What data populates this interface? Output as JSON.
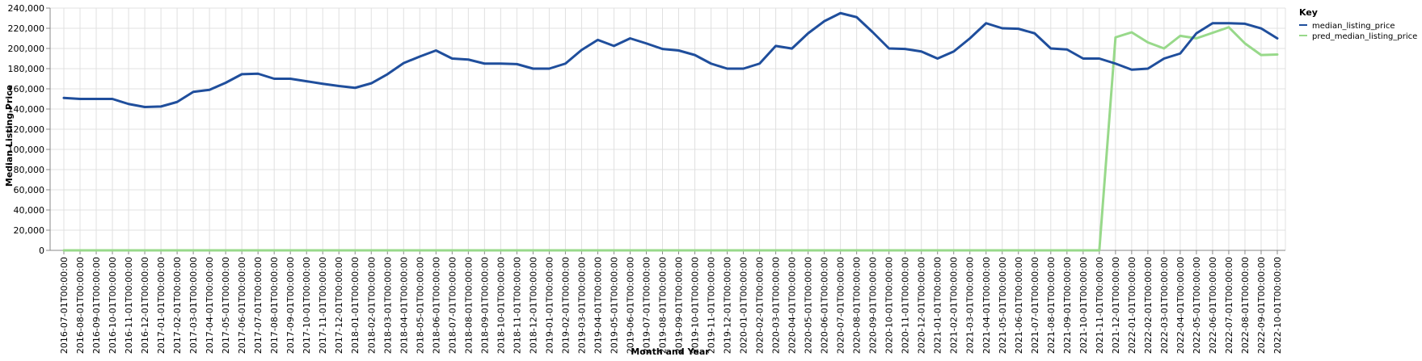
{
  "chart_data": {
    "type": "line",
    "title": "",
    "xlabel": "Month and Year",
    "ylabel": "Median Listing Price",
    "ylim": [
      0,
      240000
    ],
    "y_ticks": [
      0,
      20000,
      40000,
      60000,
      80000,
      100000,
      120000,
      140000,
      160000,
      180000,
      200000,
      220000,
      240000
    ],
    "y_tick_labels": [
      "0",
      "20,000",
      "40,000",
      "60,000",
      "80,000",
      "100,000",
      "120,000",
      "140,000",
      "160,000",
      "180,000",
      "200,000",
      "220,000",
      "240,000"
    ],
    "grid": true,
    "legend": {
      "title": "Key",
      "placement": "top-right"
    },
    "categories": [
      "2016-07-01T00:00:00",
      "2016-08-01T00:00:00",
      "2016-09-01T00:00:00",
      "2016-10-01T00:00:00",
      "2016-11-01T00:00:00",
      "2016-12-01T00:00:00",
      "2017-01-01T00:00:00",
      "2017-02-01T00:00:00",
      "2017-03-01T00:00:00",
      "2017-04-01T00:00:00",
      "2017-05-01T00:00:00",
      "2017-06-01T00:00:00",
      "2017-07-01T00:00:00",
      "2017-08-01T00:00:00",
      "2017-09-01T00:00:00",
      "2017-10-01T00:00:00",
      "2017-11-01T00:00:00",
      "2017-12-01T00:00:00",
      "2018-01-01T00:00:00",
      "2018-02-01T00:00:00",
      "2018-03-01T00:00:00",
      "2018-04-01T00:00:00",
      "2018-05-01T00:00:00",
      "2018-06-01T00:00:00",
      "2018-07-01T00:00:00",
      "2018-08-01T00:00:00",
      "2018-09-01T00:00:00",
      "2018-10-01T00:00:00",
      "2018-11-01T00:00:00",
      "2018-12-01T00:00:00",
      "2019-01-01T00:00:00",
      "2019-02-01T00:00:00",
      "2019-03-01T00:00:00",
      "2019-04-01T00:00:00",
      "2019-05-01T00:00:00",
      "2019-06-01T00:00:00",
      "2019-07-01T00:00:00",
      "2019-08-01T00:00:00",
      "2019-09-01T00:00:00",
      "2019-10-01T00:00:00",
      "2019-11-01T00:00:00",
      "2019-12-01T00:00:00",
      "2020-01-01T00:00:00",
      "2020-02-01T00:00:00",
      "2020-03-01T00:00:00",
      "2020-04-01T00:00:00",
      "2020-05-01T00:00:00",
      "2020-06-01T00:00:00",
      "2020-07-01T00:00:00",
      "2020-08-01T00:00:00",
      "2020-09-01T00:00:00",
      "2020-10-01T00:00:00",
      "2020-11-01T00:00:00",
      "2020-12-01T00:00:00",
      "2021-01-01T00:00:00",
      "2021-02-01T00:00:00",
      "2021-03-01T00:00:00",
      "2021-04-01T00:00:00",
      "2021-05-01T00:00:00",
      "2021-06-01T00:00:00",
      "2021-07-01T00:00:00",
      "2021-08-01T00:00:00",
      "2021-09-01T00:00:00",
      "2021-10-01T00:00:00",
      "2021-11-01T00:00:00",
      "2021-12-01T00:00:00",
      "2022-01-01T00:00:00",
      "2022-02-01T00:00:00",
      "2022-03-01T00:00:00",
      "2022-04-01T00:00:00",
      "2022-05-01T00:00:00",
      "2022-06-01T00:00:00",
      "2022-07-01T00:00:00",
      "2022-08-01T00:00:00",
      "2022-09-01T00:00:00",
      "2022-10-01T00:00:00"
    ],
    "series": [
      {
        "name": "median_listing_price",
        "color": "#1f4e9c",
        "values": [
          151000,
          150000,
          150000,
          150000,
          145000,
          142000,
          142500,
          147000,
          157000,
          159000,
          166000,
          174500,
          175000,
          170000,
          170000,
          167500,
          165000,
          162800,
          161000,
          165500,
          174500,
          185500,
          192000,
          198000,
          190000,
          189000,
          185000,
          185000,
          184500,
          180000,
          180000,
          185000,
          198500,
          208500,
          202500,
          210000,
          205000,
          199500,
          198000,
          193500,
          185000,
          180000,
          180000,
          185000,
          202500,
          199900,
          215000,
          227000,
          235000,
          231000,
          216000,
          200000,
          199500,
          197000,
          190000,
          197000,
          210000,
          225000,
          220000,
          219500,
          215000,
          200000,
          199000,
          190000,
          190000,
          185000,
          179000,
          180000,
          190000,
          195000,
          215000,
          225000,
          225000,
          224500,
          219900,
          210000
        ]
      },
      {
        "name": "pred_median_listing_price",
        "color": "#98d98a",
        "values": [
          0,
          0,
          0,
          0,
          0,
          0,
          0,
          0,
          0,
          0,
          0,
          0,
          0,
          0,
          0,
          0,
          0,
          0,
          0,
          0,
          0,
          0,
          0,
          0,
          0,
          0,
          0,
          0,
          0,
          0,
          0,
          0,
          0,
          0,
          0,
          0,
          0,
          0,
          0,
          0,
          0,
          0,
          0,
          0,
          0,
          0,
          0,
          0,
          0,
          0,
          0,
          0,
          0,
          0,
          0,
          0,
          0,
          0,
          0,
          0,
          0,
          0,
          0,
          0,
          0,
          211000,
          216000,
          206000,
          200000,
          212500,
          210000,
          215500,
          221000,
          205000,
          193500,
          194000
        ]
      }
    ]
  }
}
